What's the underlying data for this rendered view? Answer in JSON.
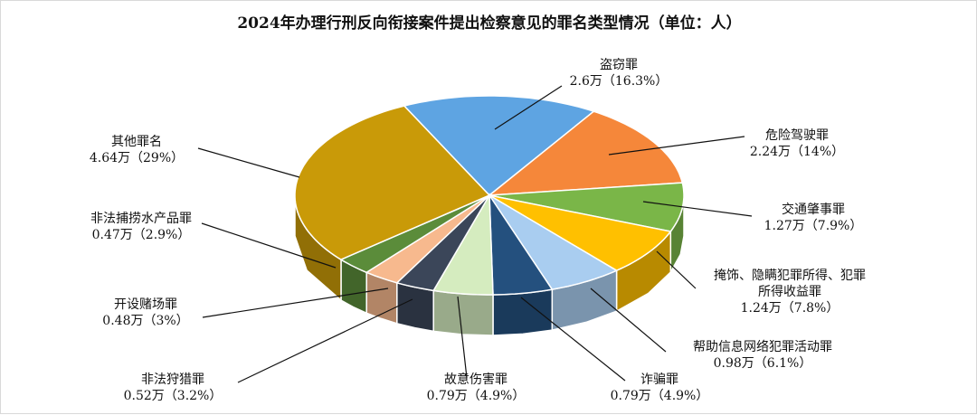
{
  "chart_data": {
    "type": "pie3d",
    "title": "2024年办理行刑反向衔接案件提出检察意见的罪名类型情况（单位：人）",
    "categories": [
      "盗窃罪",
      "危险驾驶罪",
      "交通肇事罪",
      "掩饰、隐瞒犯罪所得、犯罪所得收益罪",
      "帮助信息网络犯罪活动罪",
      "诈骗罪",
      "故意伤害罪",
      "非法狩猎罪",
      "开设赌场罪",
      "非法捕捞水产品罪",
      "其他罪名"
    ],
    "values": [
      2.6,
      2.24,
      1.27,
      1.24,
      0.98,
      0.79,
      0.79,
      0.52,
      0.48,
      0.47,
      4.64
    ],
    "value_labels": [
      "2.6万（16.3%）",
      "2.24万（14%）",
      "1.27万（7.9%）",
      "1.24万（7.8%）",
      "0.98万（6.1%）",
      "0.79万（4.9%）",
      "0.79万（4.9%）",
      "0.52万（3.2%）",
      "0.48万（3%）",
      "0.47万（2.9%）",
      "4.64万（29%）"
    ],
    "colors": [
      "#5ea4e2",
      "#f5873a",
      "#7ab648",
      "#ffc000",
      "#a9cdf0",
      "#24507e",
      "#d5ecbf",
      "#3b4659",
      "#f7b98e",
      "#5b8c3a",
      "#c99a08"
    ]
  }
}
